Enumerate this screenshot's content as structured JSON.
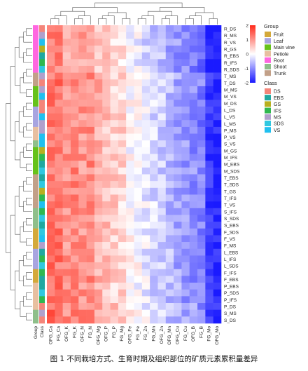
{
  "caption": "图 1 不同栽培方式、生育时期及组织部位的矿质元素累积量差异",
  "chart_data": {
    "type": "heatmap",
    "columns": [
      "OFG_Ca",
      "FG_Ca",
      "OFG_K",
      "FG_K",
      "OFG_N",
      "FG_N",
      "OFG_Mg",
      "OFG_P",
      "FG_P",
      "FG_Mg",
      "OFG_Fe",
      "FG_Fe",
      "FG_Zn",
      "FG_Mn",
      "OFG_Zn",
      "OFG_Mn",
      "OFG_Cu",
      "FG_Cu",
      "OFG_B",
      "FG_B",
      "FG_Mo",
      "OFG_Mo"
    ],
    "rows": [
      "R_DS",
      "R_MS",
      "R_VS",
      "R_GS",
      "R_EBS",
      "R_IFS",
      "R_SDS",
      "T_MS",
      "T_DS",
      "M_MS",
      "M_VS",
      "M_DS",
      "L_DS",
      "L_VS",
      "L_MS",
      "P_MS",
      "P_VS",
      "S_VS",
      "M_GS",
      "M_IFS",
      "M_EBS",
      "M_SDS",
      "T_EBS",
      "T_SDS",
      "T_GS",
      "T_IFS",
      "T_VS",
      "S_IFS",
      "S_SDS",
      "S_EBS",
      "F_SDS",
      "F_VS",
      "F_MS",
      "L_EBS",
      "L_IFS",
      "L_SDS",
      "F_IFS",
      "F_EBS",
      "P_EBS",
      "P_SDS",
      "P_IFS",
      "P_DS",
      "S_MS",
      "S_DS"
    ],
    "color_scale": {
      "min": -2,
      "max": 2,
      "ticks": [
        2,
        1,
        0,
        -1,
        -2
      ],
      "low_color": "#1a1aff",
      "mid_color": "#ffffff",
      "high_color": "#ff2a1a"
    },
    "annotation_columns": [
      "Group",
      "Class"
    ],
    "legend_group": {
      "title": "Group",
      "items": [
        {
          "name": "Fruit",
          "color": "#d4a93a"
        },
        {
          "name": "Leaf",
          "color": "#a8a4e0"
        },
        {
          "name": "Main vine",
          "color": "#66c21a"
        },
        {
          "name": "Petiole",
          "color": "#e8bfa0"
        },
        {
          "name": "Root",
          "color": "#ff66e0"
        },
        {
          "name": "Shoot",
          "color": "#8fbf8a"
        },
        {
          "name": "Trunk",
          "color": "#c2a088"
        }
      ]
    },
    "legend_class": {
      "title": "Class",
      "items": [
        {
          "name": "DS",
          "color": "#f4857a"
        },
        {
          "name": "EBS",
          "color": "#20a8a0"
        },
        {
          "name": "GS",
          "color": "#b8b020"
        },
        {
          "name": "IFS",
          "color": "#30b850"
        },
        {
          "name": "MS",
          "color": "#b0a0cc"
        },
        {
          "name": "SDS",
          "color": "#30c8e0"
        },
        {
          "name": "VS",
          "color": "#20c0f0"
        }
      ]
    },
    "column_profile": [
      1.3,
      1.3,
      1.0,
      1.1,
      1.0,
      1.1,
      0.75,
      0.6,
      0.45,
      0.4,
      0.05,
      0.0,
      -0.2,
      -0.35,
      -0.4,
      -0.6,
      -0.75,
      -0.85,
      -0.95,
      -1.1,
      -1.7,
      -1.95
    ]
  }
}
